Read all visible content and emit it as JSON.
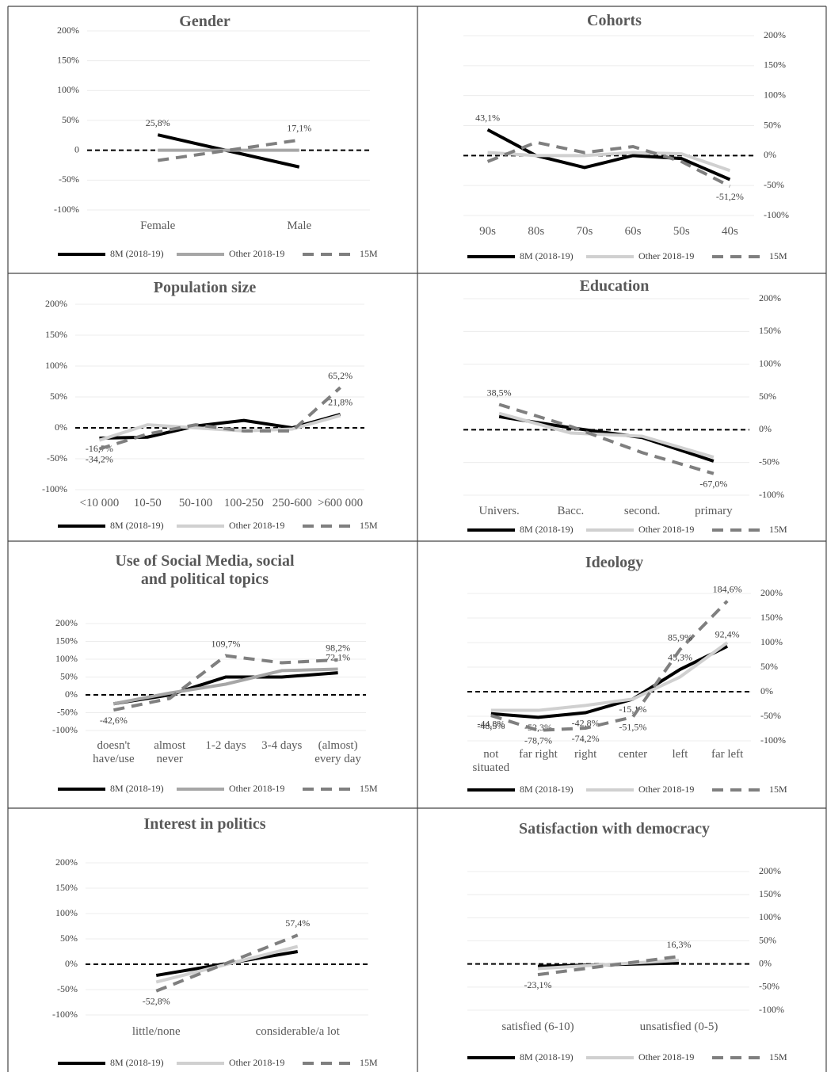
{
  "chart_data": [
    {
      "type": "line",
      "title": "Gender",
      "categories": [
        "Female",
        "Male"
      ],
      "y_axis_position": "left",
      "grid": true,
      "ylim": [
        -100,
        200
      ],
      "yticks": [
        {
          "value": -100,
          "label": "-100%"
        },
        {
          "value": -50,
          "label": "-50%"
        },
        0,
        {
          "value": 50,
          "label": "50%"
        },
        {
          "value": 100,
          "label": "100%"
        },
        {
          "value": 150,
          "label": "150%"
        },
        {
          "value": 200,
          "label": "200%"
        }
      ],
      "series": [
        {
          "name": "8M (2018-19)",
          "color": "#000000",
          "dash": false,
          "values": [
            25.8,
            -28
          ],
          "value_labels": [
            "25,8%",
            null
          ]
        },
        {
          "name": "Other 2018-19",
          "color": "#a6a6a6",
          "dash": false,
          "values": [
            0,
            0
          ]
        },
        {
          "name": "15M",
          "color": "#7f7f7f",
          "dash": true,
          "values": [
            -17,
            17.1
          ],
          "value_labels": [
            null,
            "17,1%"
          ]
        }
      ]
    },
    {
      "type": "line",
      "title": "Cohorts",
      "categories": [
        "90s",
        "80s",
        "70s",
        "60s",
        "50s",
        "40s"
      ],
      "y_axis_position": "right",
      "grid": true,
      "ylim": [
        -100,
        200
      ],
      "yticks": [
        {
          "value": -100,
          "label": "-100%"
        },
        {
          "value": -50,
          "label": "-50%"
        },
        {
          "value": 0,
          "label": "0%"
        },
        {
          "value": 50,
          "label": "50%"
        },
        {
          "value": 100,
          "label": "100%"
        },
        {
          "value": 150,
          "label": "150%"
        },
        {
          "value": 200,
          "label": "200%"
        }
      ],
      "series": [
        {
          "name": "8M (2018-19)",
          "color": "#000000",
          "dash": false,
          "values": [
            43.1,
            0,
            -20,
            0,
            -5,
            -40
          ],
          "value_labels": [
            "43,1%",
            null,
            null,
            null,
            null,
            null
          ]
        },
        {
          "name": "Other 2018-19",
          "color": "#d0d0d0",
          "dash": false,
          "values": [
            5,
            0,
            0,
            5,
            3,
            -25
          ]
        },
        {
          "name": "15M",
          "color": "#7f7f7f",
          "dash": true,
          "values": [
            -10,
            22,
            5,
            15,
            -10,
            -51.2
          ],
          "value_labels": [
            null,
            null,
            null,
            null,
            null,
            "-51,2%"
          ]
        }
      ]
    },
    {
      "type": "line",
      "title": "Population size",
      "categories": [
        "<10 000",
        "10-50",
        "50-100",
        "100-250",
        "250-600",
        ">600 000"
      ],
      "y_axis_position": "left",
      "grid": true,
      "ylim": [
        -100,
        200
      ],
      "yticks": [
        {
          "value": -100,
          "label": "-100%"
        },
        {
          "value": -50,
          "label": "-50%"
        },
        {
          "value": 0,
          "label": "0%"
        },
        {
          "value": 50,
          "label": "50%"
        },
        {
          "value": 100,
          "label": "100%"
        },
        {
          "value": 150,
          "label": "150%"
        },
        {
          "value": 200,
          "label": "200%"
        }
      ],
      "series": [
        {
          "name": "8M (2018-19)",
          "color": "#000000",
          "dash": false,
          "values": [
            -16.7,
            -15,
            3,
            12,
            0,
            21.8
          ],
          "value_labels": [
            "-16,7%",
            null,
            null,
            null,
            null,
            "21,8%"
          ]
        },
        {
          "name": "Other 2018-19",
          "color": "#d0d0d0",
          "dash": false,
          "values": [
            -20,
            5,
            0,
            -5,
            -2,
            20
          ]
        },
        {
          "name": "15M",
          "color": "#7f7f7f",
          "dash": true,
          "values": [
            -34.2,
            -10,
            5,
            -5,
            -5,
            65.2
          ],
          "value_labels": [
            "-34,2%",
            null,
            null,
            null,
            null,
            "65,2%"
          ]
        }
      ]
    },
    {
      "type": "line",
      "title": "Education",
      "categories": [
        "Univers.",
        "Bacc.",
        "second.",
        "primary"
      ],
      "y_axis_position": "right",
      "grid": true,
      "ylim": [
        -100,
        200
      ],
      "yticks": [
        {
          "value": -100,
          "label": "-100%"
        },
        {
          "value": -50,
          "label": "-50%"
        },
        {
          "value": 0,
          "label": "0%"
        },
        {
          "value": 50,
          "label": "50%"
        },
        {
          "value": 100,
          "label": "100%"
        },
        {
          "value": 150,
          "label": "150%"
        },
        {
          "value": 200,
          "label": "200%"
        }
      ],
      "series": [
        {
          "name": "8M (2018-19)",
          "color": "#000000",
          "dash": false,
          "values": [
            20,
            3,
            -12,
            -48
          ]
        },
        {
          "name": "Other 2018-19",
          "color": "#d0d0d0",
          "dash": false,
          "values": [
            25,
            -5,
            -10,
            -42
          ]
        },
        {
          "name": "15M",
          "color": "#7f7f7f",
          "dash": true,
          "values": [
            38.5,
            5,
            -35,
            -67
          ],
          "value_labels": [
            "38,5%",
            null,
            null,
            "-67,0%"
          ]
        }
      ]
    },
    {
      "type": "line",
      "title": "Use of Social Media, social and political topics",
      "categories": [
        "doesn't have/use",
        "almost never",
        "1-2 days",
        "3-4 days",
        "(almost) every day"
      ],
      "y_axis_position": "left",
      "grid": true,
      "ylim": [
        -100,
        200
      ],
      "yticks": [
        {
          "value": -100,
          "label": "-100%"
        },
        {
          "value": -50,
          "label": "-50%"
        },
        {
          "value": 0,
          "label": "0%"
        },
        {
          "value": 50,
          "label": "50%"
        },
        {
          "value": 100,
          "label": "100%"
        },
        {
          "value": 150,
          "label": "150%"
        },
        {
          "value": 200,
          "label": "200%"
        }
      ],
      "series": [
        {
          "name": "8M (2018-19)",
          "color": "#000000",
          "dash": false,
          "values": [
            -25,
            0,
            50,
            50,
            62
          ]
        },
        {
          "name": "Other 2018-19",
          "color": "#a6a6a6",
          "dash": false,
          "values": [
            -25,
            5,
            30,
            68,
            72.1
          ],
          "value_labels": [
            null,
            null,
            null,
            null,
            "72,1%"
          ]
        },
        {
          "name": "15M",
          "color": "#7f7f7f",
          "dash": true,
          "values": [
            -42.6,
            -10,
            109.7,
            90,
            98.2
          ],
          "value_labels": [
            "-42,6%",
            null,
            "109,7%",
            null,
            "98,2%"
          ]
        }
      ]
    },
    {
      "type": "line",
      "title": "Ideology",
      "categories": [
        "not situated",
        "far right",
        "right",
        "center",
        "left",
        "far left"
      ],
      "y_axis_position": "right",
      "grid": true,
      "ylim": [
        -100,
        200
      ],
      "yticks": [
        {
          "value": -100,
          "label": "-100%"
        },
        {
          "value": -50,
          "label": "-50%"
        },
        {
          "value": 0,
          "label": "0%"
        },
        {
          "value": 50,
          "label": "50%"
        },
        {
          "value": 100,
          "label": "100%"
        },
        {
          "value": 150,
          "label": "150%"
        },
        {
          "value": 200,
          "label": "200%"
        }
      ],
      "series": [
        {
          "name": "8M (2018-19)",
          "color": "#000000",
          "dash": false,
          "values": [
            -44.8,
            -52.3,
            -42.8,
            -15.1,
            45.3,
            92.4
          ],
          "value_labels": [
            "-44,8%",
            "-52,3%",
            "-42,8%",
            "-15,1%",
            "45,3%",
            "92,4%"
          ]
        },
        {
          "name": "Other 2018-19",
          "color": "#d0d0d0",
          "dash": false,
          "values": [
            -38,
            -38,
            -28,
            -15,
            30,
            100
          ]
        },
        {
          "name": "15M",
          "color": "#7f7f7f",
          "dash": true,
          "values": [
            -48.5,
            -78.7,
            -74.2,
            -51.5,
            85.9,
            184.6
          ],
          "value_labels": [
            "-48,5%",
            "-78,7%",
            "-74,2%",
            "-51,5%",
            "85,9%",
            "184,6%"
          ]
        }
      ]
    },
    {
      "type": "line",
      "title": "Interest in politics",
      "categories": [
        "little/none",
        "considerable/a lot"
      ],
      "y_axis_position": "left",
      "grid": true,
      "ylim": [
        -100,
        200
      ],
      "yticks": [
        {
          "value": -100,
          "label": "-100%"
        },
        {
          "value": -50,
          "label": "-50%"
        },
        {
          "value": 0,
          "label": "0%"
        },
        {
          "value": 50,
          "label": "50%"
        },
        {
          "value": 100,
          "label": "100%"
        },
        {
          "value": 150,
          "label": "150%"
        },
        {
          "value": 200,
          "label": "200%"
        }
      ],
      "series": [
        {
          "name": "8M (2018-19)",
          "color": "#000000",
          "dash": false,
          "values": [
            -22,
            25
          ]
        },
        {
          "name": "Other 2018-19",
          "color": "#d0d0d0",
          "dash": false,
          "values": [
            -35,
            35
          ]
        },
        {
          "name": "15M",
          "color": "#7f7f7f",
          "dash": true,
          "values": [
            -52.8,
            57.4
          ],
          "value_labels": [
            "-52,8%",
            "57,4%"
          ]
        }
      ]
    },
    {
      "type": "line",
      "title": "Satisfaction with democracy",
      "categories": [
        "satisfied (6-10)",
        "unsatisfied (0-5)"
      ],
      "y_axis_position": "right",
      "grid": true,
      "ylim": [
        -100,
        200
      ],
      "yticks": [
        {
          "value": -100,
          "label": "-100%"
        },
        {
          "value": -50,
          "label": "-50%"
        },
        {
          "value": 0,
          "label": "0%"
        },
        {
          "value": 50,
          "label": "50%"
        },
        {
          "value": 100,
          "label": "100%"
        },
        {
          "value": 150,
          "label": "150%"
        },
        {
          "value": 200,
          "label": "200%"
        }
      ],
      "series": [
        {
          "name": "8M (2018-19)",
          "color": "#000000",
          "dash": false,
          "values": [
            -5,
            2
          ]
        },
        {
          "name": "Other 2018-19",
          "color": "#d0d0d0",
          "dash": false,
          "values": [
            -10,
            8
          ]
        },
        {
          "name": "15M",
          "color": "#7f7f7f",
          "dash": true,
          "values": [
            -23.1,
            16.3
          ],
          "value_labels": [
            "-23,1%",
            "16,3%"
          ]
        }
      ]
    }
  ]
}
